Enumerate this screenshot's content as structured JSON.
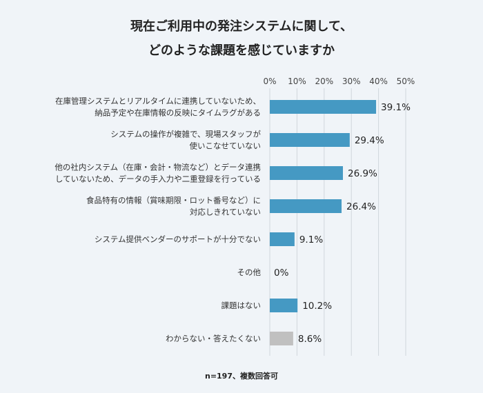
{
  "chart_data": {
    "type": "bar",
    "orientation": "horizontal",
    "title_lines": [
      "現在ご利用中の発注システムに関して、",
      "どのような課題を感じていますか"
    ],
    "categories": [
      [
        "在庫管理システムとリアルタイムに連携していないため、",
        "納品予定や在庫情報の反映にタイムラグがある"
      ],
      [
        "システムの操作が複雑で、現場スタッフが",
        "使いこなせていない"
      ],
      [
        "他の社内システム（在庫・会計・物流など）とデータ連携",
        "していないため、データの手入力や二重登録を行っている"
      ],
      [
        "食品特有の情報（賞味期限・ロット番号など）に",
        "対応しきれていない"
      ],
      [
        "システム提供ベンダーのサポートが十分でない"
      ],
      [
        "その他"
      ],
      [
        "課題はない"
      ],
      [
        "わからない・答えたくない"
      ]
    ],
    "values": [
      39.1,
      29.4,
      26.9,
      26.4,
      9.1,
      0,
      10.2,
      8.6
    ],
    "value_labels": [
      "39.1%",
      "29.4%",
      "26.9%",
      "26.4%",
      "9.1%",
      "0%",
      "10.2%",
      "8.6%"
    ],
    "xlim": [
      0,
      50
    ],
    "xticks": [
      0,
      10,
      20,
      30,
      40,
      50
    ],
    "xtick_labels": [
      "0%",
      "10%",
      "20%",
      "30%",
      "40%",
      "50%"
    ],
    "grid": true,
    "colors": {
      "default": "#4599c3",
      "last": "#c0c0c0"
    },
    "note": "n=197、複数回答可"
  }
}
